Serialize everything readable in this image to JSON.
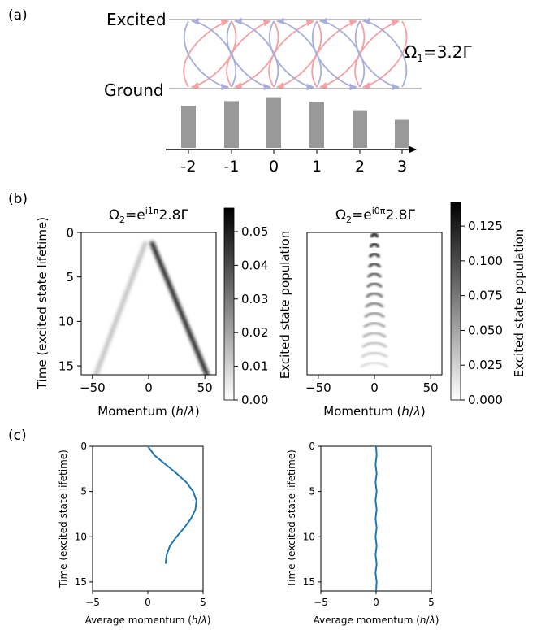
{
  "panel_labels": {
    "a": "(a)",
    "b": "(b)",
    "c": "(c)"
  },
  "colors": {
    "red": "#e8222a",
    "blue": "#2b3a9a",
    "line": "#1f77b4",
    "pink_arrow": "#f4a0a4",
    "blue_arrow": "#a7aedb",
    "bar": "#999999"
  },
  "panel_a": {
    "excited_label": "Excited",
    "ground_label": "Ground",
    "omega1_label": "Ω",
    "omega1_sub": "1",
    "omega1_value": "=3.2Γ",
    "bar_labels": [
      "-2",
      "-1",
      "0",
      "1",
      "2",
      "3"
    ],
    "bar_values": [
      0.65,
      0.72,
      0.78,
      0.71,
      0.58,
      0.43
    ]
  },
  "panel_b": {
    "left": {
      "title_prefix": "Ω",
      "title_sub": "2",
      "title_eq": "=e",
      "title_sup": "i1π",
      "title_suffix": "2.8Γ",
      "xlabel": "Momentum (h/λ)",
      "ylabel": "Time (excited state lifetime)",
      "xticks": [
        "−50",
        "0",
        "50"
      ],
      "yticks": [
        "0",
        "5",
        "10",
        "15"
      ],
      "colorbar_label": "Excited state population",
      "colorbar_ticks": [
        "0.05",
        "0.04",
        "0.03",
        "0.02",
        "0.01",
        "0.00"
      ]
    },
    "right": {
      "title_prefix": "Ω",
      "title_sub": "2",
      "title_eq": "=e",
      "title_sup": "i0π",
      "title_suffix": "2.8Γ",
      "xlabel": "Momentum (h/λ)",
      "xticks": [
        "−50",
        "0",
        "50"
      ],
      "colorbar_label": "Excited state population",
      "colorbar_ticks": [
        "0.125",
        "0.100",
        "0.075",
        "0.050",
        "0.025",
        "0.000"
      ]
    }
  },
  "panel_c": {
    "left": {
      "xlabel": "Average momentum (h/λ)",
      "ylabel": "Time (excited state lifetime)",
      "xticks": [
        "−5",
        "0",
        "5"
      ],
      "yticks": [
        "0",
        "5",
        "10",
        "15"
      ]
    },
    "right": {
      "xlabel": "Average momentum (h/λ)",
      "ylabel": "Time (excited state lifetime)",
      "xticks": [
        "−5",
        "0",
        "5"
      ],
      "yticks": [
        "0",
        "5",
        "10",
        "15"
      ]
    }
  },
  "chart_data": [
    {
      "type": "bar",
      "categories": [
        "-2",
        "-1",
        "0",
        "1",
        "2",
        "3"
      ],
      "values": [
        0.65,
        0.72,
        0.78,
        0.71,
        0.58,
        0.43
      ],
      "ylim": [
        0,
        1
      ],
      "grid": false
    },
    {
      "type": "heatmap",
      "xlabel": "Momentum (h/λ)",
      "ylabel": "Time (excited state lifetime)",
      "xlim": [
        -60,
        60
      ],
      "ylim": [
        16,
        0
      ],
      "colorbar_range": [
        0,
        0.057
      ],
      "colorbar_label": "Excited state population",
      "features": [
        {
          "from": [
            3,
            1.2
          ],
          "to": [
            52,
            16
          ],
          "peak": 0.055
        },
        {
          "from": [
            -3,
            1.2
          ],
          "to": [
            -47,
            16
          ],
          "peak": 0.018
        }
      ]
    },
    {
      "type": "heatmap",
      "xlabel": "Momentum (h/λ)",
      "xlim": [
        -60,
        60
      ],
      "ylim": [
        16,
        0
      ],
      "colorbar_range": [
        0,
        0.142
      ],
      "colorbar_label": "Excited state population",
      "features": [
        {
          "center_x": 0,
          "t_start": 0.4,
          "t_end": 15,
          "peak": 0.14
        }
      ]
    },
    {
      "type": "line",
      "xlabel": "Average momentum (h/λ)",
      "ylabel": "Time (excited state lifetime)",
      "xlim": [
        -5,
        5
      ],
      "ylim": [
        16,
        0
      ],
      "series": [
        {
          "x": [
            0,
            0.6,
            1.6,
            2.6,
            3.5,
            4.1,
            4.4,
            4.3,
            3.9,
            3.3,
            2.6,
            2.0,
            1.7,
            1.6
          ],
          "y": [
            0,
            1,
            2,
            3,
            4,
            5,
            6,
            7,
            8,
            9,
            10,
            11,
            12,
            13
          ]
        }
      ]
    },
    {
      "type": "line",
      "xlabel": "Average momentum (h/λ)",
      "ylabel": "Time (excited state lifetime)",
      "xlim": [
        -5,
        5
      ],
      "ylim": [
        16,
        0
      ],
      "series": [
        {
          "x": [
            0,
            0.05,
            -0.05,
            0.05,
            -0.05,
            0.05,
            -0.05,
            0.05,
            -0.05,
            0.05,
            -0.05,
            0.05,
            -0.05,
            0.05,
            -0.05,
            0.05,
            0
          ],
          "y": [
            0,
            1,
            2,
            3,
            4,
            5,
            6,
            7,
            8,
            9,
            10,
            11,
            12,
            13,
            14,
            15,
            16
          ]
        }
      ]
    }
  ]
}
